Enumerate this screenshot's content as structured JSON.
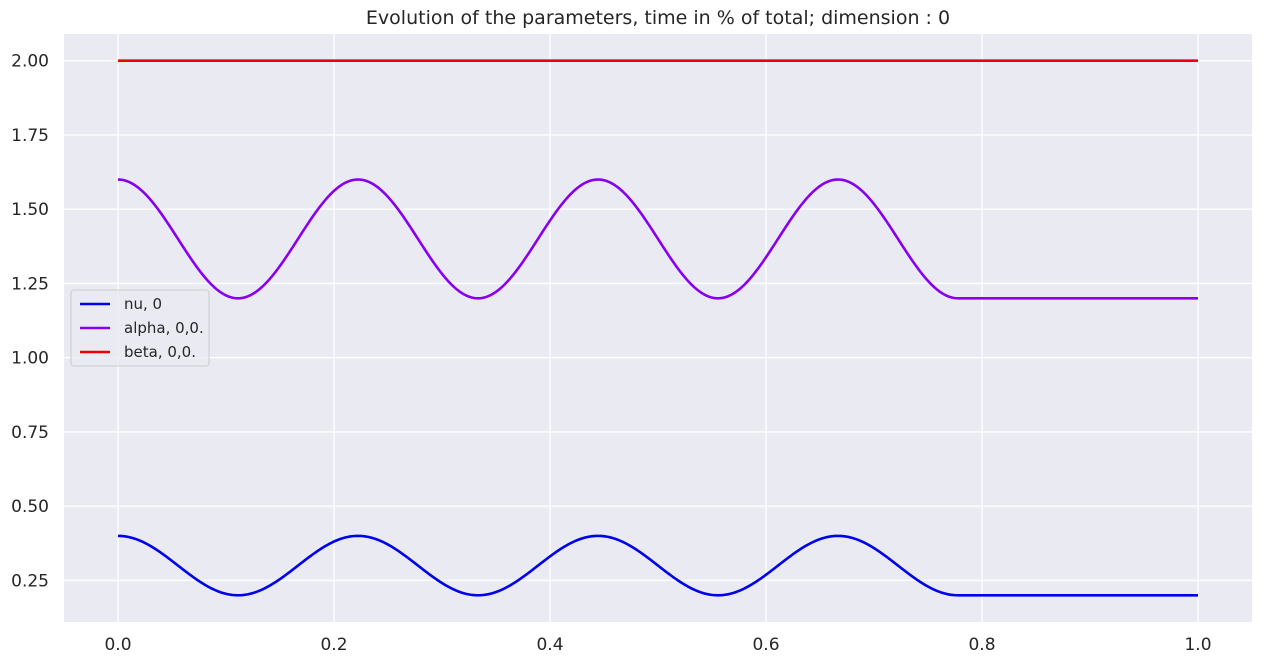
{
  "chart_data": {
    "type": "line",
    "title": "Evolution of the parameters, time in % of total; dimension : 0",
    "xlabel": "",
    "ylabel": "",
    "xlim": [
      -0.05,
      1.05
    ],
    "ylim": [
      0.11,
      2.09
    ],
    "x_ticks": [
      "0.0",
      "0.2",
      "0.4",
      "0.6",
      "0.8",
      "1.0"
    ],
    "y_ticks": [
      "0.25",
      "0.50",
      "0.75",
      "1.00",
      "1.25",
      "1.50",
      "1.75",
      "2.00"
    ],
    "grid": true,
    "legend_position": "center-left",
    "background_color": "#eaeaf2",
    "series": [
      {
        "name": "nu, 0",
        "color": "#0000ee",
        "description": "cosine oscillation between 0.40 and 0.20 with period 2/9 until x≈0.778, then constant 0.20",
        "values": [
          [
            0.0,
            0.4
          ],
          [
            0.0556,
            0.3
          ],
          [
            0.1111,
            0.2
          ],
          [
            0.1667,
            0.3
          ],
          [
            0.2222,
            0.4
          ],
          [
            0.2778,
            0.3
          ],
          [
            0.3333,
            0.2
          ],
          [
            0.3889,
            0.3
          ],
          [
            0.4444,
            0.4
          ],
          [
            0.5,
            0.3
          ],
          [
            0.5556,
            0.2
          ],
          [
            0.6111,
            0.3
          ],
          [
            0.6667,
            0.4
          ],
          [
            0.7222,
            0.3
          ],
          [
            0.7778,
            0.2
          ],
          [
            1.0,
            0.2
          ]
        ]
      },
      {
        "name": "alpha, 0,0.",
        "color": "#8800ee",
        "description": "cosine oscillation between 1.60 and 1.20 with period 2/9 until x≈0.778, then constant 1.20",
        "values": [
          [
            0.0,
            1.6
          ],
          [
            0.0556,
            1.4
          ],
          [
            0.1111,
            1.2
          ],
          [
            0.1667,
            1.4
          ],
          [
            0.2222,
            1.6
          ],
          [
            0.2778,
            1.4
          ],
          [
            0.3333,
            1.2
          ],
          [
            0.3889,
            1.4
          ],
          [
            0.4444,
            1.6
          ],
          [
            0.5,
            1.4
          ],
          [
            0.5556,
            1.2
          ],
          [
            0.6111,
            1.4
          ],
          [
            0.6667,
            1.6
          ],
          [
            0.7222,
            1.4
          ],
          [
            0.7778,
            1.2
          ],
          [
            1.0,
            1.2
          ]
        ]
      },
      {
        "name": "beta, 0,0.",
        "color": "#ee0000",
        "description": "constant 2.00",
        "values": [
          [
            0.0,
            2.0
          ],
          [
            1.0,
            2.0
          ]
        ]
      }
    ]
  }
}
